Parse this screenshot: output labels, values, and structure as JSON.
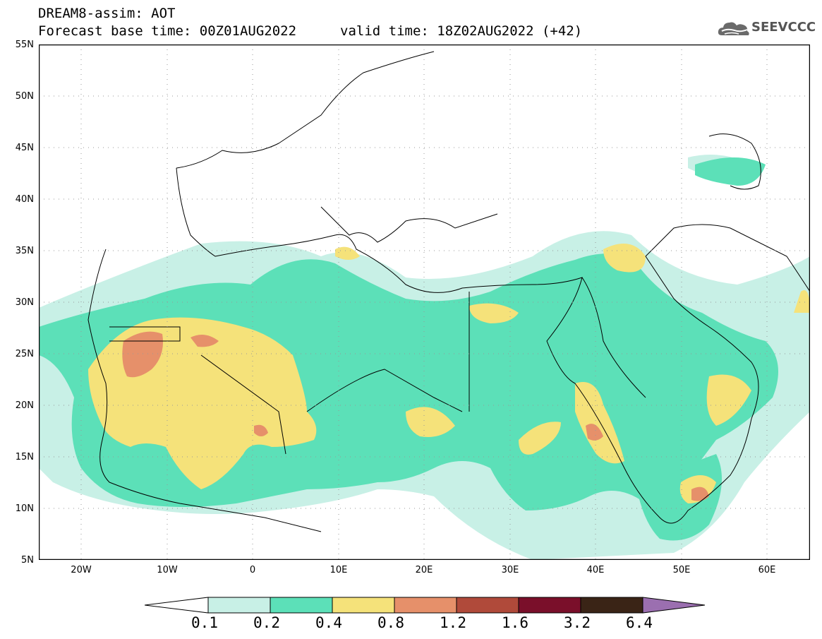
{
  "header": {
    "title_line1": "DREAM8-assim: AOT",
    "title_line2": "Forecast base time: 00Z01AUG2022",
    "valid_time": "valid time: 18Z02AUG2022 (+42)",
    "logo_text": "SEEVCCC"
  },
  "map": {
    "lat_labels": [
      "55N",
      "50N",
      "45N",
      "40N",
      "35N",
      "30N",
      "25N",
      "20N",
      "15N",
      "10N",
      "5N"
    ],
    "lon_labels": [
      "20W",
      "10W",
      "0",
      "10E",
      "20E",
      "30E",
      "40E",
      "50E",
      "60E"
    ],
    "extent": {
      "lon_min": -25,
      "lon_max": 65,
      "lat_min": 5,
      "lat_max": 55
    },
    "background_color": "#ffffff",
    "coastline_color": "#000000"
  },
  "colorbar": {
    "labels": [
      "0.1",
      "0.2",
      "0.4",
      "0.8",
      "1.2",
      "1.6",
      "3.2",
      "6.4"
    ],
    "colors": [
      "#ffffff",
      "#c8f0e6",
      "#5ce0b8",
      "#f5e27a",
      "#e6906a",
      "#b04a3a",
      "#7a0f2a",
      "#3a2416",
      "#9b6fb0"
    ]
  }
}
